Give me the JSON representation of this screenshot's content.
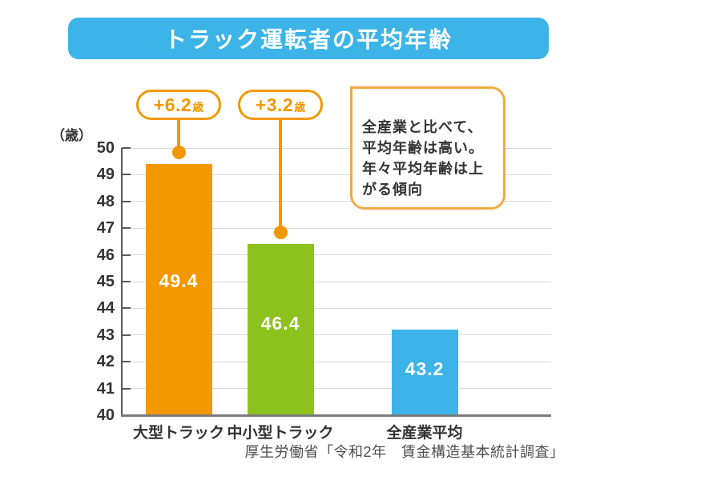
{
  "title": "トラック運転者の平均年齢",
  "chart_data": {
    "type": "bar",
    "title": "トラック運転者の平均年齢",
    "unit_label": "（歳）",
    "categories": [
      "大型トラック",
      "中小型トラック",
      "全産業平均"
    ],
    "values": [
      49.4,
      46.4,
      43.2
    ],
    "value_labels": [
      "49.4",
      "46.4",
      "43.2"
    ],
    "bar_colors": [
      "#f39800",
      "#8dc21e",
      "#3cb4e8"
    ],
    "ylim": [
      40,
      50
    ],
    "yticks": [
      40,
      41,
      42,
      43,
      44,
      45,
      46,
      47,
      48,
      49,
      50
    ],
    "grid": true,
    "legend": "none",
    "annotations": [
      {
        "target_category": "大型トラック",
        "main": "+6.2",
        "suffix": "歳"
      },
      {
        "target_category": "中小型トラック",
        "main": "+3.2",
        "suffix": "歳"
      }
    ]
  },
  "note_bubble": {
    "text": "全産業と比べて、\n平均年齢は高い。\n年々平均年齢は上\nがる傾向"
  },
  "source": "厚生労働省「令和2年　賃金構造基本統計調査」",
  "colors": {
    "title_bg": "#3cb4e8",
    "bar_large_truck": "#f39800",
    "bar_mid_small_truck": "#8dc21e",
    "bar_all_industry": "#3cb4e8",
    "callout_border": "#f39800",
    "bubble_border": "#f0ab45",
    "grid": "#d9d9d9",
    "axis": "#595959",
    "text": "#333333"
  }
}
